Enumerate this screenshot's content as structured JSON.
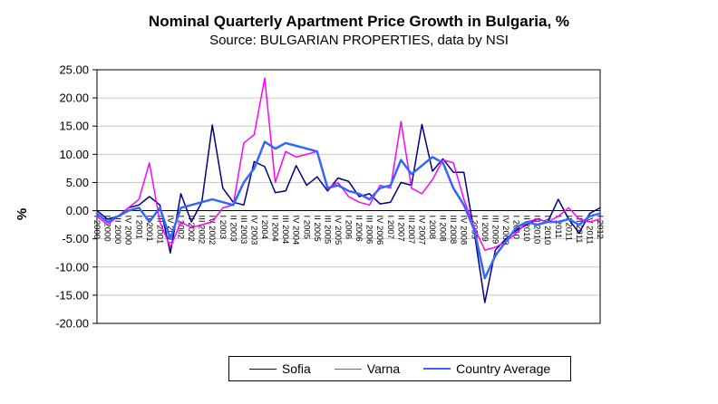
{
  "title": "Nominal Quarterly Apartment Price Growth in Bulgaria, %",
  "subtitle": "Source: BULGARIAN PROPERTIES, data by NSI",
  "chart_data": {
    "type": "line",
    "title": "Nominal Quarterly Apartment Price Growth in Bulgaria, %",
    "subtitle": "Source: BULGARIAN PROPERTIES, data by NSI",
    "xlabel": "",
    "ylabel": "%",
    "ylim": [
      -20,
      25
    ],
    "ytick_step": 5,
    "ytick_decimals": 2,
    "grid": true,
    "legend_position": "bottom",
    "gridline_color": "#c6c6c6",
    "axis_color": "#000000",
    "categories": [
      "I 2000",
      "II 2000",
      "III 2000",
      "IV 2000",
      "I 2001",
      "II 2001",
      "III 2001",
      "IV 2001",
      "I 2002",
      "II 2002",
      "III 2002",
      "IV 2002",
      "I 2003",
      "II 2003",
      "III 2003",
      "IV 2003",
      "I 2004",
      "II 2004",
      "III 2004",
      "IV 2004",
      "I 2005",
      "II 2005",
      "III 2005",
      "IV 2005",
      "I 2006",
      "II 2006",
      "III 2006",
      "IV 2006",
      "I 2007",
      "II 2007",
      "III 2007",
      "IV 2007",
      "I 2008",
      "II 2008",
      "III 2008",
      "IV 2008",
      "I 2009",
      "II 2009",
      "III 2009",
      "IV 2009",
      "I 2010",
      "II 2010",
      "III 2010",
      "IV 2010",
      "I 2011",
      "II 2011",
      "III 2011",
      "IV 2011",
      "I 2012"
    ],
    "series": [
      {
        "name": "Sofia",
        "color": "#000080",
        "width": 1.5,
        "values": [
          0.0,
          -1.5,
          -1.0,
          0.5,
          1.0,
          2.5,
          1.0,
          -7.5,
          3.0,
          -2.0,
          1.5,
          15.2,
          4.0,
          1.5,
          1.0,
          8.7,
          7.8,
          3.2,
          3.5,
          8.0,
          4.5,
          6.0,
          3.5,
          5.8,
          5.2,
          2.5,
          3.0,
          1.2,
          1.5,
          5.0,
          4.5,
          15.3,
          7.0,
          9.2,
          6.8,
          6.8,
          -4.0,
          -16.3,
          -7.0,
          -5.0,
          -3.5,
          -2.5,
          -1.5,
          -2.0,
          2.0,
          -1.5,
          -4.0,
          -0.5,
          0.5
        ]
      },
      {
        "name": "Varna",
        "color": "#FF00FF",
        "width": 1.5,
        "values": [
          -1.0,
          -2.5,
          -1.0,
          0.5,
          2.0,
          8.5,
          -2.0,
          -6.5,
          -2.0,
          -3.0,
          -2.5,
          -2.0,
          0.5,
          1.0,
          12.0,
          13.5,
          23.5,
          5.0,
          10.5,
          9.5,
          10.0,
          10.5,
          4.0,
          5.0,
          2.5,
          1.5,
          1.0,
          4.5,
          4.0,
          15.8,
          4.0,
          3.0,
          5.5,
          9.0,
          8.5,
          2.0,
          -3.0,
          -7.0,
          -6.5,
          -5.5,
          -4.0,
          -2.0,
          -1.5,
          -2.0,
          -1.0,
          0.5,
          -1.5,
          -2.0,
          -1.5
        ]
      },
      {
        "name": "Country Average",
        "color": "#3366FF",
        "width": 2.5,
        "values": [
          -0.5,
          -2.0,
          -1.0,
          0.0,
          0.5,
          -2.0,
          0.5,
          -5.0,
          0.5,
          1.0,
          1.5,
          2.0,
          1.5,
          1.0,
          5.0,
          7.5,
          12.2,
          11.0,
          12.0,
          11.5,
          11.0,
          10.5,
          4.0,
          4.5,
          3.5,
          3.0,
          2.0,
          4.0,
          4.5,
          9.0,
          6.5,
          8.0,
          9.5,
          8.5,
          4.0,
          1.0,
          -3.5,
          -12.0,
          -8.0,
          -5.5,
          -3.0,
          -2.0,
          -2.5,
          -2.0,
          -2.0,
          -1.5,
          -2.5,
          -1.0,
          -0.5
        ]
      }
    ]
  }
}
